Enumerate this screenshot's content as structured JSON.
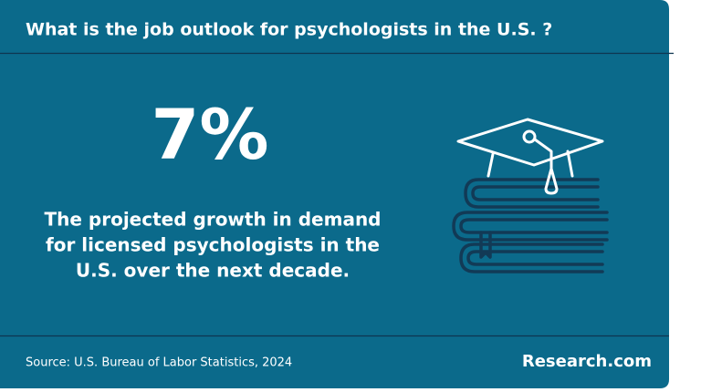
{
  "header": {
    "title": "What is the job outlook for psychologists in the U.S. ?"
  },
  "stat": {
    "value": "7%",
    "description": [
      "The projected growth in demand",
      "for licensed psychologists in the",
      "U.S. over the next decade."
    ]
  },
  "footer": {
    "source": "Source: U.S. Bureau of Labor Statistics, 2024",
    "brand": "Research.com"
  }
}
